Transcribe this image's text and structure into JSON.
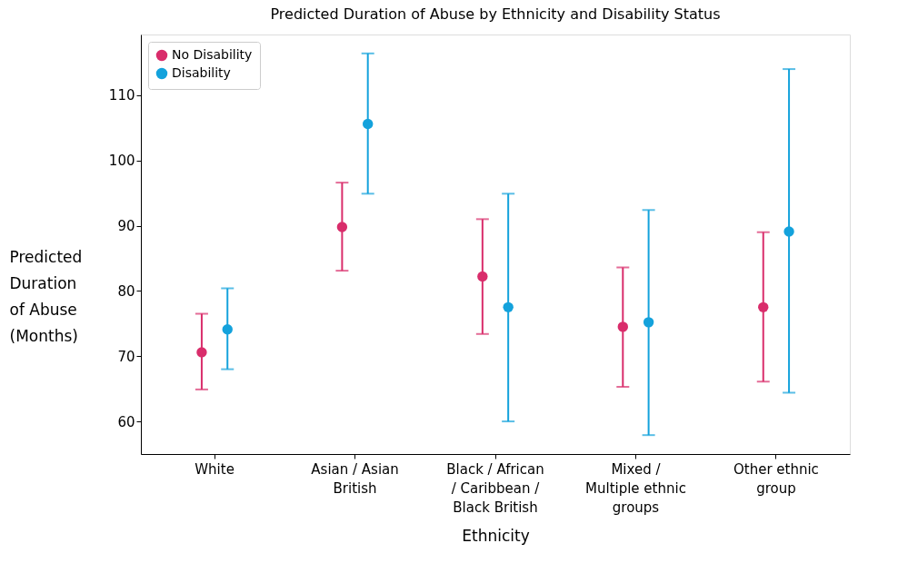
{
  "chart_data": {
    "type": "scatter",
    "title": "Predicted Duration of Abuse by Ethnicity and Disability Status",
    "xlabel": "Ethnicity",
    "ylabel": "Predicted Duration of Abuse (Months)",
    "categories": [
      "White",
      "Asian / Asian British",
      "Black / African / Caribbean / Black British",
      "Mixed / Multiple ethnic groups",
      "Other ethnic group"
    ],
    "series": [
      {
        "name": "No Disability",
        "color": "#d92d6b",
        "values": [
          70.6,
          89.8,
          82.2,
          74.5,
          77.5
        ],
        "errors": [
          [
            64.9,
            76.5
          ],
          [
            83.1,
            96.6
          ],
          [
            73.4,
            91.0
          ],
          [
            65.3,
            83.6
          ],
          [
            66.1,
            89.0
          ]
        ]
      },
      {
        "name": "Disability",
        "color": "#14a2dc",
        "values": [
          74.1,
          105.6,
          77.5,
          75.2,
          89.1
        ],
        "errors": [
          [
            68.0,
            80.4
          ],
          [
            94.9,
            116.4
          ],
          [
            60.0,
            94.9
          ],
          [
            57.9,
            92.4
          ],
          [
            64.4,
            114.0
          ]
        ]
      }
    ],
    "ylim": [
      55,
      119.3
    ],
    "yticks": [
      60,
      70,
      80,
      90,
      100,
      110
    ],
    "grid": false,
    "legend": "top left",
    "marker": "circle"
  }
}
